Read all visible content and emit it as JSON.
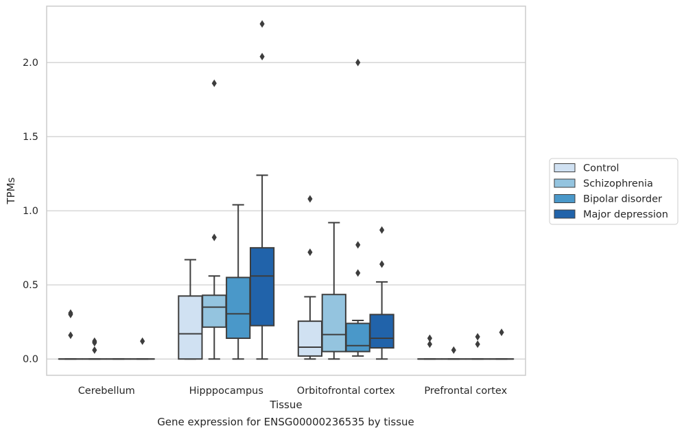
{
  "caption": "Gene expression for ENSG00000236535 by tissue",
  "chart_data": {
    "type": "box",
    "xlabel": "Tissue",
    "ylabel": "TPMs",
    "ylim": [
      -0.11,
      2.38
    ],
    "yticks": [
      0.0,
      0.5,
      1.0,
      1.5,
      2.0
    ],
    "ytick_labels": [
      "0.0",
      "0.5",
      "1.0",
      "1.5",
      "2.0"
    ],
    "grid": "horizontal",
    "legend_position": "right",
    "categories": [
      "Cerebellum",
      "Hipppocampus",
      "Orbitofrontal cortex",
      "Prefrontal cortex"
    ],
    "series": [
      {
        "name": "Control",
        "color": "#d0e1f2",
        "boxes": [
          {
            "q1": 0,
            "median": 0,
            "q3": 0,
            "whislo": 0,
            "whishi": 0,
            "fliers": [
              0.3,
              0.31,
              0.16
            ]
          },
          {
            "q1": 0,
            "median": 0.17,
            "q3": 0.425,
            "whislo": 0,
            "whishi": 0.67,
            "fliers": []
          },
          {
            "q1": 0.02,
            "median": 0.08,
            "q3": 0.255,
            "whislo": 0,
            "whishi": 0.42,
            "fliers": [
              1.08,
              0.72
            ]
          },
          {
            "q1": 0,
            "median": 0,
            "q3": 0,
            "whislo": 0,
            "whishi": 0,
            "fliers": [
              0.14,
              0.1
            ]
          }
        ]
      },
      {
        "name": "Schizophrenia",
        "color": "#94c4df",
        "boxes": [
          {
            "q1": 0,
            "median": 0,
            "q3": 0,
            "whislo": 0,
            "whishi": 0,
            "fliers": [
              0.12,
              0.11,
              0.06
            ]
          },
          {
            "q1": 0.215,
            "median": 0.35,
            "q3": 0.43,
            "whislo": 0,
            "whishi": 0.56,
            "fliers": [
              1.86,
              0.82
            ]
          },
          {
            "q1": 0.05,
            "median": 0.165,
            "q3": 0.435,
            "whislo": 0,
            "whishi": 0.92,
            "fliers": []
          },
          {
            "q1": 0,
            "median": 0,
            "q3": 0,
            "whislo": 0,
            "whishi": 0,
            "fliers": [
              0.06
            ]
          }
        ]
      },
      {
        "name": "Bipolar disorder",
        "color": "#4a98c9",
        "boxes": [
          {
            "q1": 0,
            "median": 0,
            "q3": 0,
            "whislo": 0,
            "whishi": 0,
            "fliers": []
          },
          {
            "q1": 0.14,
            "median": 0.305,
            "q3": 0.55,
            "whislo": 0,
            "whishi": 1.04,
            "fliers": []
          },
          {
            "q1": 0.05,
            "median": 0.09,
            "q3": 0.24,
            "whislo": 0.02,
            "whishi": 0.26,
            "fliers": [
              2.0,
              0.77,
              0.58
            ]
          },
          {
            "q1": 0,
            "median": 0,
            "q3": 0,
            "whislo": 0,
            "whishi": 0,
            "fliers": [
              0.15,
              0.1
            ]
          }
        ]
      },
      {
        "name": "Major depression",
        "color": "#2163aa",
        "boxes": [
          {
            "q1": 0,
            "median": 0,
            "q3": 0,
            "whislo": 0,
            "whishi": 0,
            "fliers": [
              0.12
            ]
          },
          {
            "q1": 0.225,
            "median": 0.56,
            "q3": 0.75,
            "whislo": 0,
            "whishi": 1.24,
            "fliers": [
              2.26,
              2.04
            ]
          },
          {
            "q1": 0.075,
            "median": 0.14,
            "q3": 0.3,
            "whislo": 0,
            "whishi": 0.52,
            "fliers": [
              0.87,
              0.64
            ]
          },
          {
            "q1": 0,
            "median": 0,
            "q3": 0,
            "whislo": 0,
            "whishi": 0,
            "fliers": [
              0.18
            ]
          }
        ]
      }
    ]
  }
}
